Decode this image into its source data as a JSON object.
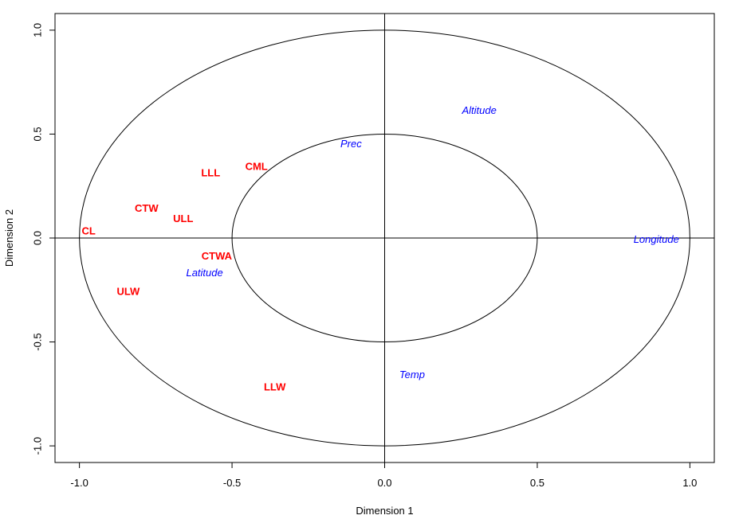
{
  "chart_data": {
    "type": "scatter",
    "title": "",
    "xlabel": "Dimension  1",
    "ylabel": "Dimension  2",
    "xlim": [
      -1.08,
      1.08
    ],
    "ylim": [
      -1.08,
      1.08
    ],
    "xticks": [
      -1.0,
      -0.5,
      0.0,
      0.5,
      1.0
    ],
    "yticks": [
      -1.0,
      -0.5,
      0.0,
      0.5,
      1.0
    ],
    "xtick_labels": [
      "-1.0",
      "-0.5",
      "0.0",
      "0.5",
      "1.0"
    ],
    "ytick_labels": [
      "-1.0",
      "-0.5",
      "0.0",
      "0.5",
      "1.0"
    ],
    "reference_circles": [
      1.0,
      0.5
    ],
    "reference_lines": {
      "x": 0,
      "y": 0
    },
    "grid": false,
    "series": [
      {
        "color": "#ff0000",
        "style": "bold",
        "points": [
          {
            "label": "CL",
            "x": -0.97,
            "y": 0.03
          },
          {
            "label": "CTW",
            "x": -0.78,
            "y": 0.14
          },
          {
            "label": "ULL",
            "x": -0.66,
            "y": 0.09
          },
          {
            "label": "LLL",
            "x": -0.57,
            "y": 0.31
          },
          {
            "label": "CML",
            "x": -0.42,
            "y": 0.34
          },
          {
            "label": "CTWA",
            "x": -0.55,
            "y": -0.09
          },
          {
            "label": "ULW",
            "x": -0.84,
            "y": -0.26
          },
          {
            "label": "LLW",
            "x": -0.36,
            "y": -0.72
          }
        ]
      },
      {
        "color": "#0000ff",
        "style": "italic",
        "points": [
          {
            "label": "Altitude",
            "x": 0.31,
            "y": 0.61
          },
          {
            "label": "Prec",
            "x": -0.11,
            "y": 0.45
          },
          {
            "label": "Longitude",
            "x": 0.89,
            "y": -0.01
          },
          {
            "label": "Latitude",
            "x": -0.59,
            "y": -0.17
          },
          {
            "label": "Temp",
            "x": 0.09,
            "y": -0.66
          }
        ]
      }
    ]
  }
}
